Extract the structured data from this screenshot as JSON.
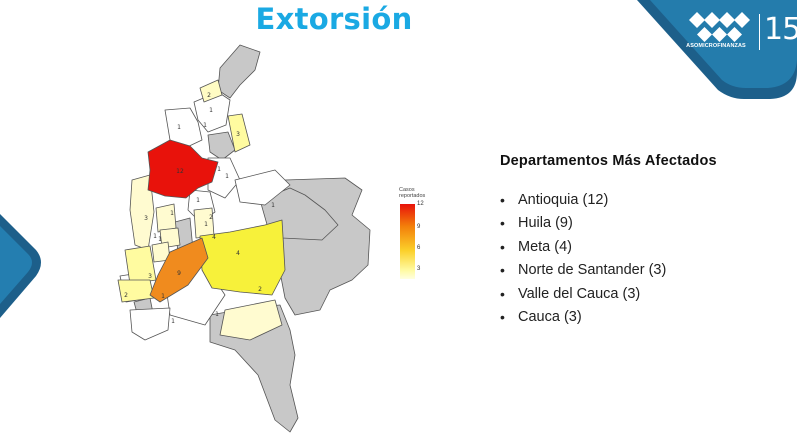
{
  "title": "Extorsión",
  "logo": {
    "brand": "ASOMICROFINANZAS",
    "anniversary": "15"
  },
  "legend": {
    "title_line1": "Casos",
    "title_line2": "reportados",
    "ticks": [
      "12",
      "9",
      "6",
      "3"
    ]
  },
  "panel": {
    "heading": "Departamentos Más Afectados",
    "items": [
      "Antioquia (12)",
      "Huila (9)",
      "Meta (4)",
      "Norte de Santander (3)",
      "Valle del Cauca (3)",
      "Cauca (3)"
    ]
  },
  "map_labels": [
    "2",
    "1",
    "1",
    "1",
    "1",
    "3",
    "12",
    "1",
    "1",
    "1",
    "1",
    "1",
    "1",
    "3",
    "4",
    "2",
    "1",
    "4",
    "3",
    "9",
    "2",
    "2",
    "1",
    "1",
    "1"
  ],
  "colors": {
    "title": "#1aa9e3",
    "brand_dark": "#1d5f8a",
    "brand_light": "#2a93c9",
    "zero": "#c8c8c8",
    "max": "#e8120b"
  }
}
